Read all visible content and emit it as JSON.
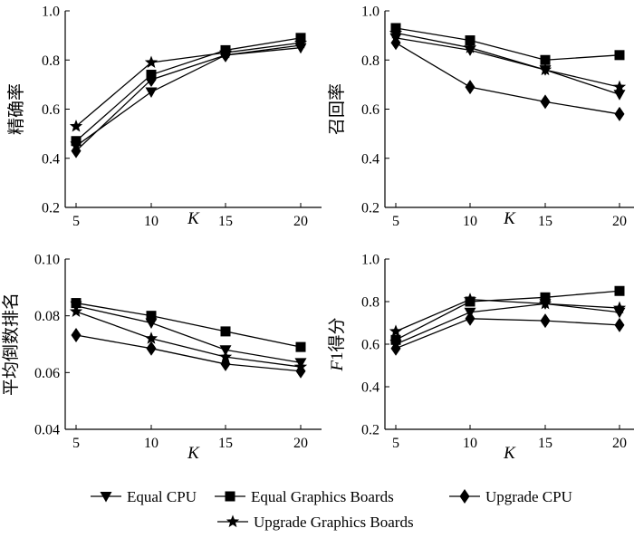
{
  "chart_data": {
    "legend": {
      "placement": "bottom",
      "items": [
        "Equal CPU",
        "Equal Graphics Boards",
        "Upgrade CPU",
        "Upgrade Graphics Boards"
      ],
      "markers": [
        "triangle-down",
        "square",
        "diamond",
        "star"
      ]
    },
    "charts": [
      {
        "type": "line",
        "ylabel": "精确率",
        "xlabel": "K",
        "x": [
          5,
          10,
          15,
          20
        ],
        "ylim": [
          0.2,
          1.0
        ],
        "yticks": [
          "0.2",
          "0.4",
          "0.6",
          "0.8",
          "1.0"
        ],
        "grid": false,
        "series": [
          {
            "name": "Equal CPU",
            "values": [
              0.45,
              0.67,
              0.82,
              0.85
            ]
          },
          {
            "name": "Equal Graphics Boards",
            "values": [
              0.47,
              0.74,
              0.84,
              0.89
            ]
          },
          {
            "name": "Upgrade CPU",
            "values": [
              0.43,
              0.72,
              0.82,
              0.86
            ]
          },
          {
            "name": "Upgrade Graphics Boards",
            "values": [
              0.53,
              0.79,
              0.83,
              0.87
            ]
          }
        ]
      },
      {
        "type": "line",
        "ylabel": "召回率",
        "xlabel": "K",
        "x": [
          5,
          10,
          15,
          20
        ],
        "ylim": [
          0.2,
          1.0
        ],
        "yticks": [
          "0.2",
          "0.4",
          "0.6",
          "0.8",
          "1.0"
        ],
        "grid": false,
        "series": [
          {
            "name": "Equal CPU",
            "values": [
              0.89,
              0.84,
              0.76,
              0.66
            ]
          },
          {
            "name": "Equal Graphics Boards",
            "values": [
              0.93,
              0.88,
              0.8,
              0.82
            ]
          },
          {
            "name": "Upgrade CPU",
            "values": [
              0.87,
              0.69,
              0.63,
              0.58
            ]
          },
          {
            "name": "Upgrade Graphics Boards",
            "values": [
              0.91,
              0.85,
              0.76,
              0.69
            ]
          }
        ]
      },
      {
        "type": "line",
        "ylabel": "平均倒数排名",
        "xlabel": "K",
        "x": [
          5,
          10,
          15,
          20
        ],
        "ylim": [
          0.04,
          0.1
        ],
        "yticks": [
          "0.04",
          "0.06",
          "0.08",
          "0.10"
        ],
        "grid": false,
        "series": [
          {
            "name": "Equal CPU",
            "values": [
              0.0835,
              0.0775,
              0.068,
              0.0635
            ]
          },
          {
            "name": "Equal Graphics Boards",
            "values": [
              0.0845,
              0.08,
              0.0745,
              0.069
            ]
          },
          {
            "name": "Upgrade CPU",
            "values": [
              0.0732,
              0.0685,
              0.063,
              0.0605
            ]
          },
          {
            "name": "Upgrade Graphics Boards",
            "values": [
              0.0815,
              0.072,
              0.0655,
              0.062
            ]
          }
        ]
      },
      {
        "type": "line",
        "ylabel": "F1得分",
        "xlabel": "K",
        "x": [
          5,
          10,
          15,
          20
        ],
        "ylim": [
          0.2,
          1.0
        ],
        "yticks": [
          "0.2",
          "0.4",
          "0.6",
          "0.8",
          "1.0"
        ],
        "grid": false,
        "series": [
          {
            "name": "Equal CPU",
            "values": [
              0.6,
              0.75,
              0.79,
              0.75
            ]
          },
          {
            "name": "Equal Graphics Boards",
            "values": [
              0.62,
              0.8,
              0.82,
              0.85
            ]
          },
          {
            "name": "Upgrade CPU",
            "values": [
              0.58,
              0.72,
              0.71,
              0.69
            ]
          },
          {
            "name": "Upgrade Graphics Boards",
            "values": [
              0.66,
              0.81,
              0.79,
              0.77
            ]
          }
        ]
      }
    ]
  }
}
